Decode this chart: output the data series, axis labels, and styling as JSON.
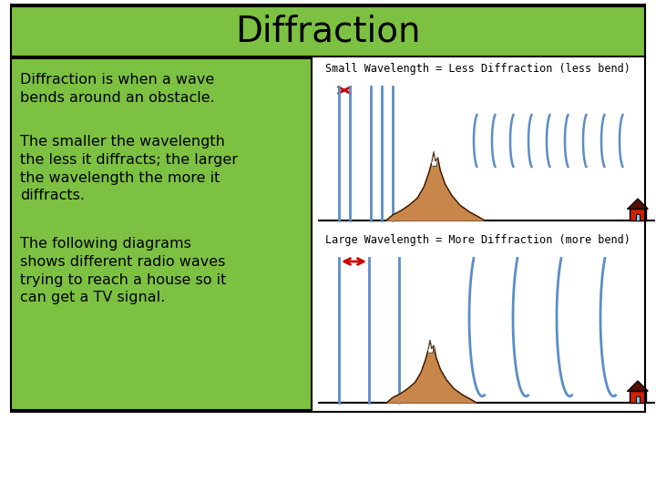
{
  "title": "Diffraction",
  "title_bg": "#7dc142",
  "title_fontsize": 28,
  "left_bg": "#7dc142",
  "right_bg": "#ffffff",
  "text1": "Diffraction is when a wave\nbends around an obstacle.",
  "text2": "The smaller the wavelength\nthe less it diffracts; the larger\nthe wavelength the more it\ndiffracts.",
  "text3": "The following diagrams\nshows different radio waves\ntrying to reach a house so it\ncan get a TV signal.",
  "label_small": "Small Wavelength = Less Diffraction (less bend)",
  "label_large": "Large Wavelength = More Diffraction (more bend)",
  "wave_color": "#5b8dc8",
  "mountain_color": "#c8864b",
  "mountain_outline": "#3a1800",
  "house_red": "#cc2200",
  "arrow_color": "#cc0000",
  "left_panel_border": "#000000",
  "bg_white": "#ffffff"
}
